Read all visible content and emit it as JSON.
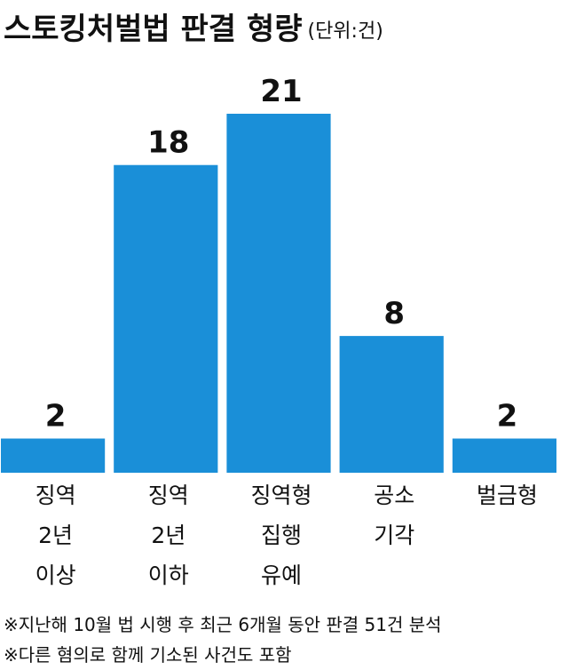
{
  "chart_data": {
    "type": "bar",
    "title": "스토킹처벌법 판결 형량",
    "subtitle": "(단위:건)",
    "categories": [
      "징역 2년 이상",
      "징역 2년 이하",
      "징역형 집행 유예",
      "공소 기각",
      "벌금형"
    ],
    "values": [
      2,
      18,
      21,
      8,
      2
    ],
    "color": "#1a8fd8",
    "notes": [
      "※지난해 10월 법 시행 후 최근 6개월 동안 판결 51건 분석",
      "※다른 혐의로 함께 기소된 사건도 포함"
    ]
  }
}
